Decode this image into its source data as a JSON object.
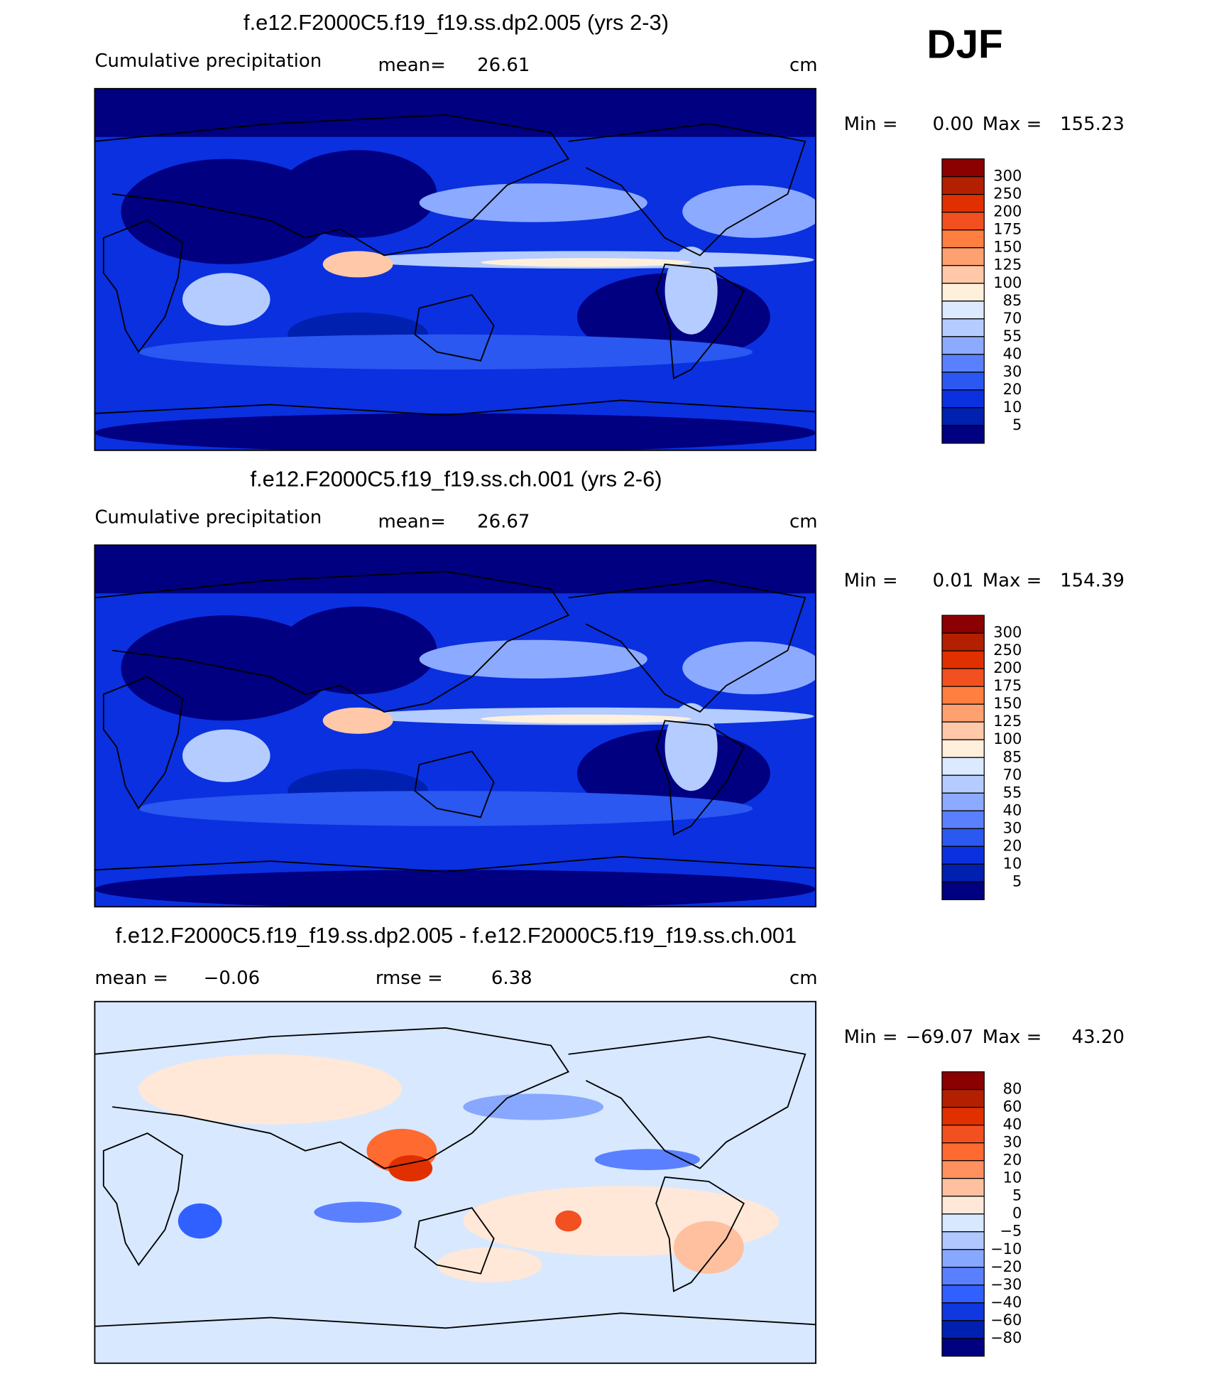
{
  "header": {
    "season": "DJF"
  },
  "panels": [
    {
      "title": "f.e12.F2000C5.f19_f19.ss.dp2.005 (yrs 2-3)",
      "label": "Cumulative precipitation",
      "stat1_label": "mean=",
      "stat1": "26.61",
      "units": "cm",
      "min_label": "Min =",
      "min": "0.00",
      "max_label": "Max =",
      "max": "155.23",
      "colorbar": {
        "colors": [
          "#8b0000",
          "#b22000",
          "#e03000",
          "#f25020",
          "#ff7f40",
          "#ffa070",
          "#ffc8a8",
          "#fff0dc",
          "#dbeaff",
          "#b4ccff",
          "#8caaff",
          "#5a80ff",
          "#2a58f0",
          "#0a30e0",
          "#0020b0",
          "#000080"
        ],
        "labels": [
          "300",
          "250",
          "200",
          "175",
          "150",
          "125",
          "100",
          "85",
          "70",
          "55",
          "40",
          "30",
          "20",
          "10",
          "5"
        ]
      }
    },
    {
      "title": "f.e12.F2000C5.f19_f19.ss.ch.001 (yrs 2-6)",
      "label": "Cumulative precipitation",
      "stat1_label": "mean=",
      "stat1": "26.67",
      "units": "cm",
      "min_label": "Min =",
      "min": "0.01",
      "max_label": "Max =",
      "max": "154.39",
      "colorbar": {
        "colors": [
          "#8b0000",
          "#b22000",
          "#e03000",
          "#f25020",
          "#ff7f40",
          "#ffa070",
          "#ffc8a8",
          "#fff0dc",
          "#dbeaff",
          "#b4ccff",
          "#8caaff",
          "#5a80ff",
          "#2a58f0",
          "#0a30e0",
          "#0020b0",
          "#000080"
        ],
        "labels": [
          "300",
          "250",
          "200",
          "175",
          "150",
          "125",
          "100",
          "85",
          "70",
          "55",
          "40",
          "30",
          "20",
          "10",
          "5"
        ]
      }
    },
    {
      "title": "f.e12.F2000C5.f19_f19.ss.dp2.005 - f.e12.F2000C5.f19_f19.ss.ch.001",
      "stat1_label": "mean =",
      "stat1": "−0.06",
      "stat2_label": "rmse =",
      "stat2": "6.38",
      "units": "cm",
      "min_label": "Min =",
      "min": "−69.07",
      "max_label": "Max =",
      "max": "43.20",
      "colorbar": {
        "colors": [
          "#8b0000",
          "#b22000",
          "#e03000",
          "#f25020",
          "#ff6a30",
          "#ff9060",
          "#ffc0a0",
          "#ffe8d8",
          "#d8e8ff",
          "#b0c8ff",
          "#88a8ff",
          "#5a80ff",
          "#3060ff",
          "#1038e0",
          "#0020b0",
          "#000080"
        ],
        "labels": [
          "80",
          "60",
          "40",
          "30",
          "20",
          "10",
          "5",
          "0",
          "−5",
          "−10",
          "−20",
          "−30",
          "−40",
          "−60",
          "−80"
        ]
      }
    }
  ]
}
